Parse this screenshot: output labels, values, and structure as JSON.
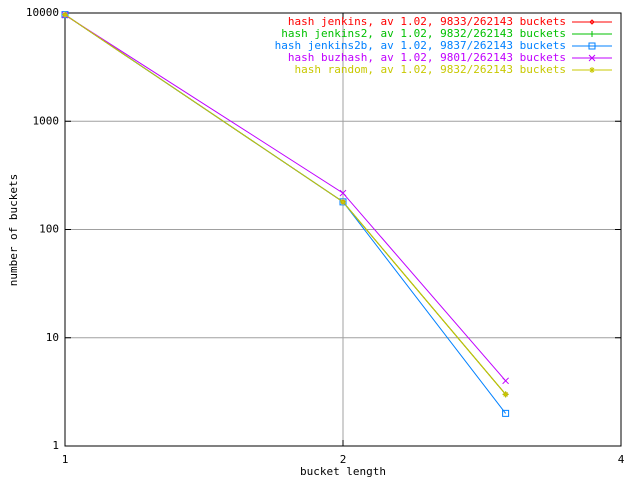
{
  "chart_data": {
    "type": "line",
    "x_label": "bucket length",
    "y_label": "number of buckets",
    "xscale": "log",
    "yscale": "log",
    "grid": true,
    "legend": "top-right",
    "xlim": [
      1,
      4
    ],
    "xticks": [
      1,
      2,
      4
    ],
    "ylim": [
      1,
      10000
    ],
    "yticks": [
      1,
      10,
      100,
      1000,
      10000
    ],
    "x": [
      1,
      2,
      3
    ],
    "series": [
      {
        "name": "hash jenkins, av 1.02, 9833/262143 buckets",
        "color": "#ff0000",
        "marker": "dot",
        "values": [
          9650,
          180,
          3
        ]
      },
      {
        "name": "hash jenkins2, av 1.02, 9832/262143 buckets",
        "color": "#00c000",
        "marker": "plus",
        "values": [
          9649,
          180,
          3
        ]
      },
      {
        "name": "hash jenkins2b, av 1.02, 9837/262143 buckets",
        "color": "#0080ff",
        "marker": "box",
        "values": [
          9655,
          180,
          2
        ]
      },
      {
        "name": "hash buzhash, av 1.02, 9801/262143 buckets",
        "color": "#c000ff",
        "marker": "cross",
        "values": [
          9580,
          217,
          4
        ]
      },
      {
        "name": "hash random, av 1.02, 9832/262143 buckets",
        "color": "#c8c800",
        "marker": "star",
        "values": [
          9649,
          180,
          3
        ]
      }
    ]
  }
}
